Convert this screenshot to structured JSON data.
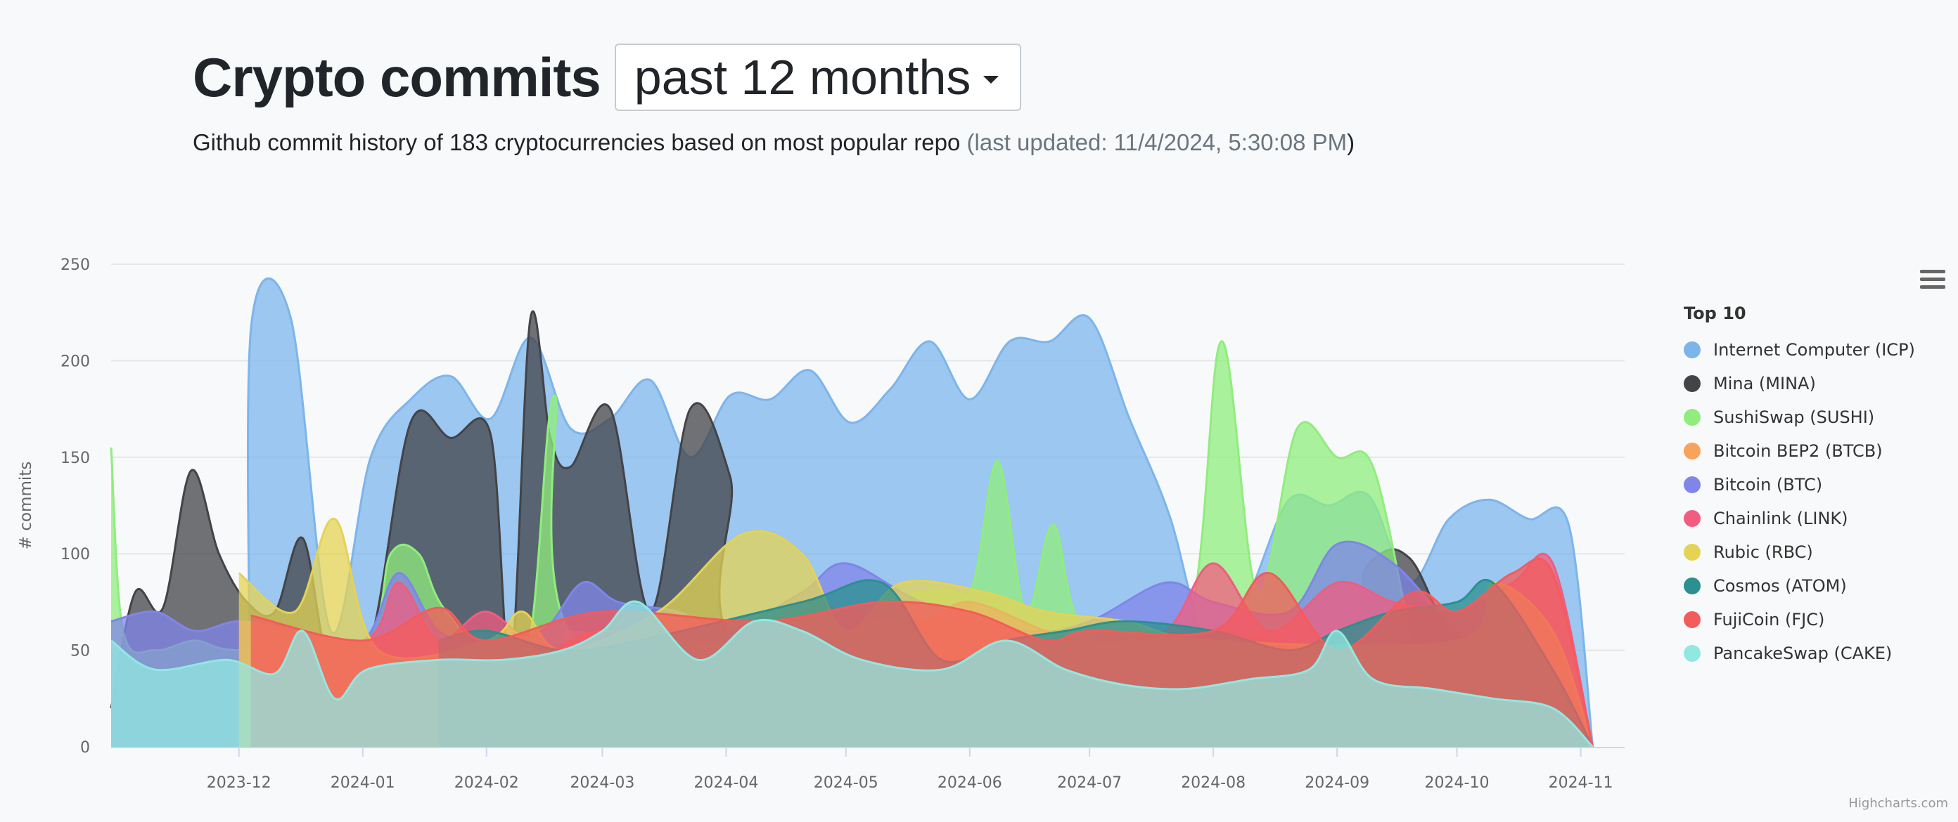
{
  "header": {
    "title": "Crypto commits",
    "period": "past 12 months",
    "subtitle_main": "Github commit history of 183 cryptocurrencies based on most popular repo ",
    "subtitle_updated": "(last updated: 11/4/2024, 5:30:08 PM",
    "subtitle_close": ")"
  },
  "chart_data": {
    "type": "area",
    "title": "Crypto commits",
    "xlabel": "",
    "ylabel": "# commits",
    "ylim": [
      0,
      250
    ],
    "yticks": [
      0,
      50,
      100,
      150,
      200,
      250
    ],
    "xticks": [
      "2023-12",
      "2024-01",
      "2024-02",
      "2024-03",
      "2024-04",
      "2024-05",
      "2024-06",
      "2024-07",
      "2024-08",
      "2024-09",
      "2024-10",
      "2024-11"
    ],
    "legend_title": "Top 10",
    "legend_position": "right",
    "series": [
      {
        "name": "Internet Computer (ICP)",
        "color": "#7cb5ec",
        "x": [
          "2023-12-04",
          "2023-12-04",
          "2023-12-14",
          "2023-12-24",
          "2024-01-03",
          "2024-01-13",
          "2024-01-23",
          "2024-02-02",
          "2024-02-12",
          "2024-02-22",
          "2024-03-03",
          "2024-03-13",
          "2024-03-23",
          "2024-04-02",
          "2024-04-12",
          "2024-04-22",
          "2024-05-02",
          "2024-05-12",
          "2024-05-22",
          "2024-06-01",
          "2024-06-11",
          "2024-06-21",
          "2024-07-01",
          "2024-07-11",
          "2024-07-21",
          "2024-07-31",
          "2024-08-10",
          "2024-08-20",
          "2024-08-30",
          "2024-09-09",
          "2024-09-19",
          "2024-09-29",
          "2024-10-09",
          "2024-10-19",
          "2024-10-29",
          "2024-11-04"
        ],
        "y": [
          0,
          216,
          222,
          60,
          150,
          180,
          192,
          170,
          212,
          165,
          170,
          190,
          150,
          182,
          180,
          195,
          168,
          185,
          210,
          180,
          210,
          210,
          222,
          170,
          120,
          50,
          80,
          128,
          125,
          130,
          85,
          118,
          128,
          118,
          115,
          0
        ]
      },
      {
        "name": "Mina (MINA)",
        "color": "#434348",
        "x": [
          "2023-10-30",
          "2023-11-05",
          "2023-11-12",
          "2023-11-19",
          "2023-11-26",
          "2023-12-03",
          "2023-12-10",
          "2023-12-17",
          "2023-12-24",
          "2024-01-03",
          "2024-01-13",
          "2024-01-23",
          "2024-02-02",
          "2024-02-07",
          "2024-02-12",
          "2024-02-17",
          "2024-02-22",
          "2024-03-03",
          "2024-03-13",
          "2024-03-23",
          "2024-04-02",
          "2024-04-12",
          "2024-08-20",
          "2024-09-09",
          "2024-09-19",
          "2024-09-29",
          "2024-10-09"
        ],
        "y": [
          20,
          80,
          72,
          143,
          100,
          75,
          70,
          108,
          40,
          55,
          168,
          160,
          162,
          40,
          222,
          160,
          145,
          175,
          70,
          175,
          140,
          40,
          40,
          95,
          98,
          60,
          55
        ]
      },
      {
        "name": "SushiSwap (SUSHI)",
        "color": "#90ed7d",
        "x": [
          "2023-10-30",
          "2023-11-02",
          "2023-11-10",
          "2023-11-20",
          "2023-12-01",
          "2024-01-01",
          "2024-01-08",
          "2024-01-15",
          "2024-01-22",
          "2024-02-10",
          "2024-02-18",
          "2024-02-26",
          "2024-05-20",
          "2024-06-01",
          "2024-06-08",
          "2024-06-15",
          "2024-06-22",
          "2024-06-30",
          "2024-07-25",
          "2024-08-03",
          "2024-08-12",
          "2024-08-22",
          "2024-09-01",
          "2024-09-10",
          "2024-09-20"
        ],
        "y": [
          155,
          60,
          50,
          55,
          50,
          55,
          100,
          100,
          70,
          40,
          182,
          50,
          80,
          80,
          148,
          70,
          115,
          60,
          60,
          210,
          80,
          165,
          150,
          145,
          50
        ]
      },
      {
        "name": "Bitcoin BEP2 (BTCB)",
        "color": "#f7a35c",
        "x": [
          "2024-02-20",
          "2024-04-01",
          "2024-05-01",
          "2024-06-01",
          "2024-07-01",
          "2024-08-01",
          "2024-08-20"
        ],
        "y": [
          60,
          55,
          65,
          60,
          55,
          60,
          55
        ]
      },
      {
        "name": "Bitcoin (BTC)",
        "color": "#8085e9",
        "x": [
          "2023-10-30",
          "2023-11-10",
          "2023-11-20",
          "2023-12-01",
          "2023-12-15",
          "2024-01-01",
          "2024-01-10",
          "2024-01-20",
          "2024-02-01",
          "2024-02-15",
          "2024-02-25",
          "2024-03-05",
          "2024-03-20",
          "2024-04-01",
          "2024-04-20",
          "2024-05-01",
          "2024-05-20",
          "2024-06-15",
          "2024-07-01",
          "2024-07-20",
          "2024-08-01",
          "2024-08-20",
          "2024-09-01",
          "2024-09-15",
          "2024-10-01",
          "2024-10-10"
        ],
        "y": [
          65,
          70,
          60,
          65,
          60,
          55,
          90,
          60,
          55,
          60,
          85,
          75,
          70,
          60,
          80,
          95,
          75,
          60,
          65,
          85,
          75,
          70,
          105,
          95,
          60,
          55
        ]
      },
      {
        "name": "Chainlink (LINK)",
        "color": "#f15c80",
        "x": [
          "2023-12-01",
          "2024-01-01",
          "2024-01-10",
          "2024-01-20",
          "2024-02-01",
          "2024-02-15",
          "2024-03-01",
          "2024-04-01",
          "2024-04-20",
          "2024-05-01",
          "2024-05-20",
          "2024-06-01",
          "2024-06-20",
          "2024-07-01",
          "2024-07-20",
          "2024-08-01",
          "2024-08-15",
          "2024-09-01",
          "2024-09-15",
          "2024-10-01",
          "2024-10-15",
          "2024-10-25",
          "2024-11-04"
        ],
        "y": [
          65,
          55,
          85,
          55,
          70,
          50,
          60,
          55,
          75,
          70,
          65,
          75,
          60,
          55,
          60,
          95,
          60,
          85,
          75,
          70,
          85,
          95,
          0
        ]
      },
      {
        "name": "Rubic (RBC)",
        "color": "#e4d354",
        "x": [
          "2023-12-01",
          "2023-12-15",
          "2023-12-25",
          "2024-01-05",
          "2024-02-01",
          "2024-02-10",
          "2024-02-20",
          "2024-03-15",
          "2024-04-05",
          "2024-04-20",
          "2024-05-01",
          "2024-05-15",
          "2024-06-05",
          "2024-06-20",
          "2024-07-10",
          "2024-08-01",
          "2024-10-01",
          "2024-10-10",
          "2024-10-25",
          "2024-11-04"
        ],
        "y": [
          90,
          70,
          118,
          50,
          55,
          70,
          50,
          70,
          110,
          100,
          60,
          85,
          80,
          70,
          65,
          55,
          55,
          85,
          60,
          0
        ]
      },
      {
        "name": "Cosmos (ATOM)",
        "color": "#2b908f",
        "x": [
          "2024-01-20",
          "2024-02-01",
          "2024-02-20",
          "2024-03-10",
          "2024-04-20",
          "2024-05-10",
          "2024-05-25",
          "2024-06-10",
          "2024-06-25",
          "2024-07-10",
          "2024-08-01",
          "2024-08-20",
          "2024-09-01",
          "2024-09-15",
          "2024-10-01",
          "2024-10-10",
          "2024-10-25",
          "2024-11-04"
        ],
        "y": [
          55,
          60,
          50,
          55,
          75,
          85,
          45,
          55,
          60,
          65,
          60,
          50,
          60,
          70,
          75,
          85,
          40,
          0
        ]
      },
      {
        "name": "FujiCoin (FJC)",
        "color": "#f45b5b",
        "x": [
          "2023-12-04",
          "2024-01-01",
          "2024-01-20",
          "2024-02-01",
          "2024-03-01",
          "2024-04-10",
          "2024-05-10",
          "2024-06-01",
          "2024-06-20",
          "2024-07-01",
          "2024-08-01",
          "2024-08-15",
          "2024-09-01",
          "2024-09-20",
          "2024-10-01",
          "2024-10-15",
          "2024-10-25",
          "2024-11-04"
        ],
        "y": [
          68,
          55,
          72,
          55,
          70,
          65,
          75,
          70,
          55,
          60,
          60,
          90,
          50,
          80,
          70,
          90,
          90,
          0
        ]
      },
      {
        "name": "PancakeSwap (CAKE)",
        "color": "#91e8e1",
        "x": [
          "2023-10-30",
          "2023-11-10",
          "2023-11-28",
          "2023-12-10",
          "2023-12-17",
          "2023-12-25",
          "2024-01-02",
          "2024-01-20",
          "2024-02-05",
          "2024-02-20",
          "2024-03-01",
          "2024-03-10",
          "2024-03-25",
          "2024-04-08",
          "2024-04-20",
          "2024-05-05",
          "2024-05-25",
          "2024-06-10",
          "2024-06-25",
          "2024-07-10",
          "2024-07-25",
          "2024-08-10",
          "2024-08-25",
          "2024-09-01",
          "2024-09-10",
          "2024-09-25",
          "2024-10-10",
          "2024-10-25",
          "2024-11-04"
        ],
        "y": [
          55,
          40,
          45,
          38,
          60,
          25,
          40,
          45,
          45,
          50,
          60,
          75,
          45,
          65,
          60,
          45,
          40,
          55,
          40,
          32,
          30,
          35,
          40,
          60,
          35,
          30,
          25,
          20,
          0
        ]
      }
    ]
  },
  "menu": {
    "icon": "hamburger-menu-icon"
  },
  "credits": "Highcharts.com"
}
